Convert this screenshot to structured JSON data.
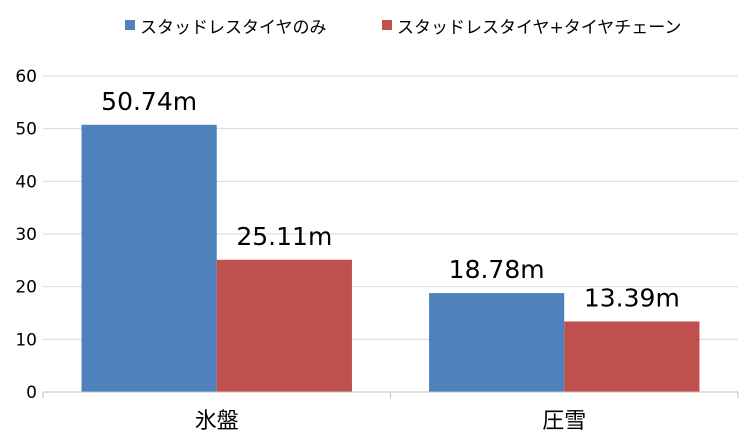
{
  "chart_data": {
    "type": "bar",
    "categories": [
      "氷盤",
      "圧雪"
    ],
    "series": [
      {
        "name": "スタッドレスタイヤのみ",
        "values": [
          50.74,
          18.78
        ],
        "labels": [
          "50.74m",
          "18.78m"
        ],
        "color": "#4f81bd"
      },
      {
        "name": "スタッドレスタイヤ+タイヤチェーン",
        "values": [
          25.11,
          13.39
        ],
        "labels": [
          "25.11m",
          "13.39m"
        ],
        "color": "#c0504d"
      }
    ],
    "ylim": [
      0,
      60
    ],
    "yticks": [
      "0",
      "10",
      "20",
      "30",
      "40",
      "50",
      "60"
    ],
    "grid": true,
    "legend_position": "top",
    "gridline_color": "#d9d9d9",
    "axis_color": "#bfbfbf"
  }
}
